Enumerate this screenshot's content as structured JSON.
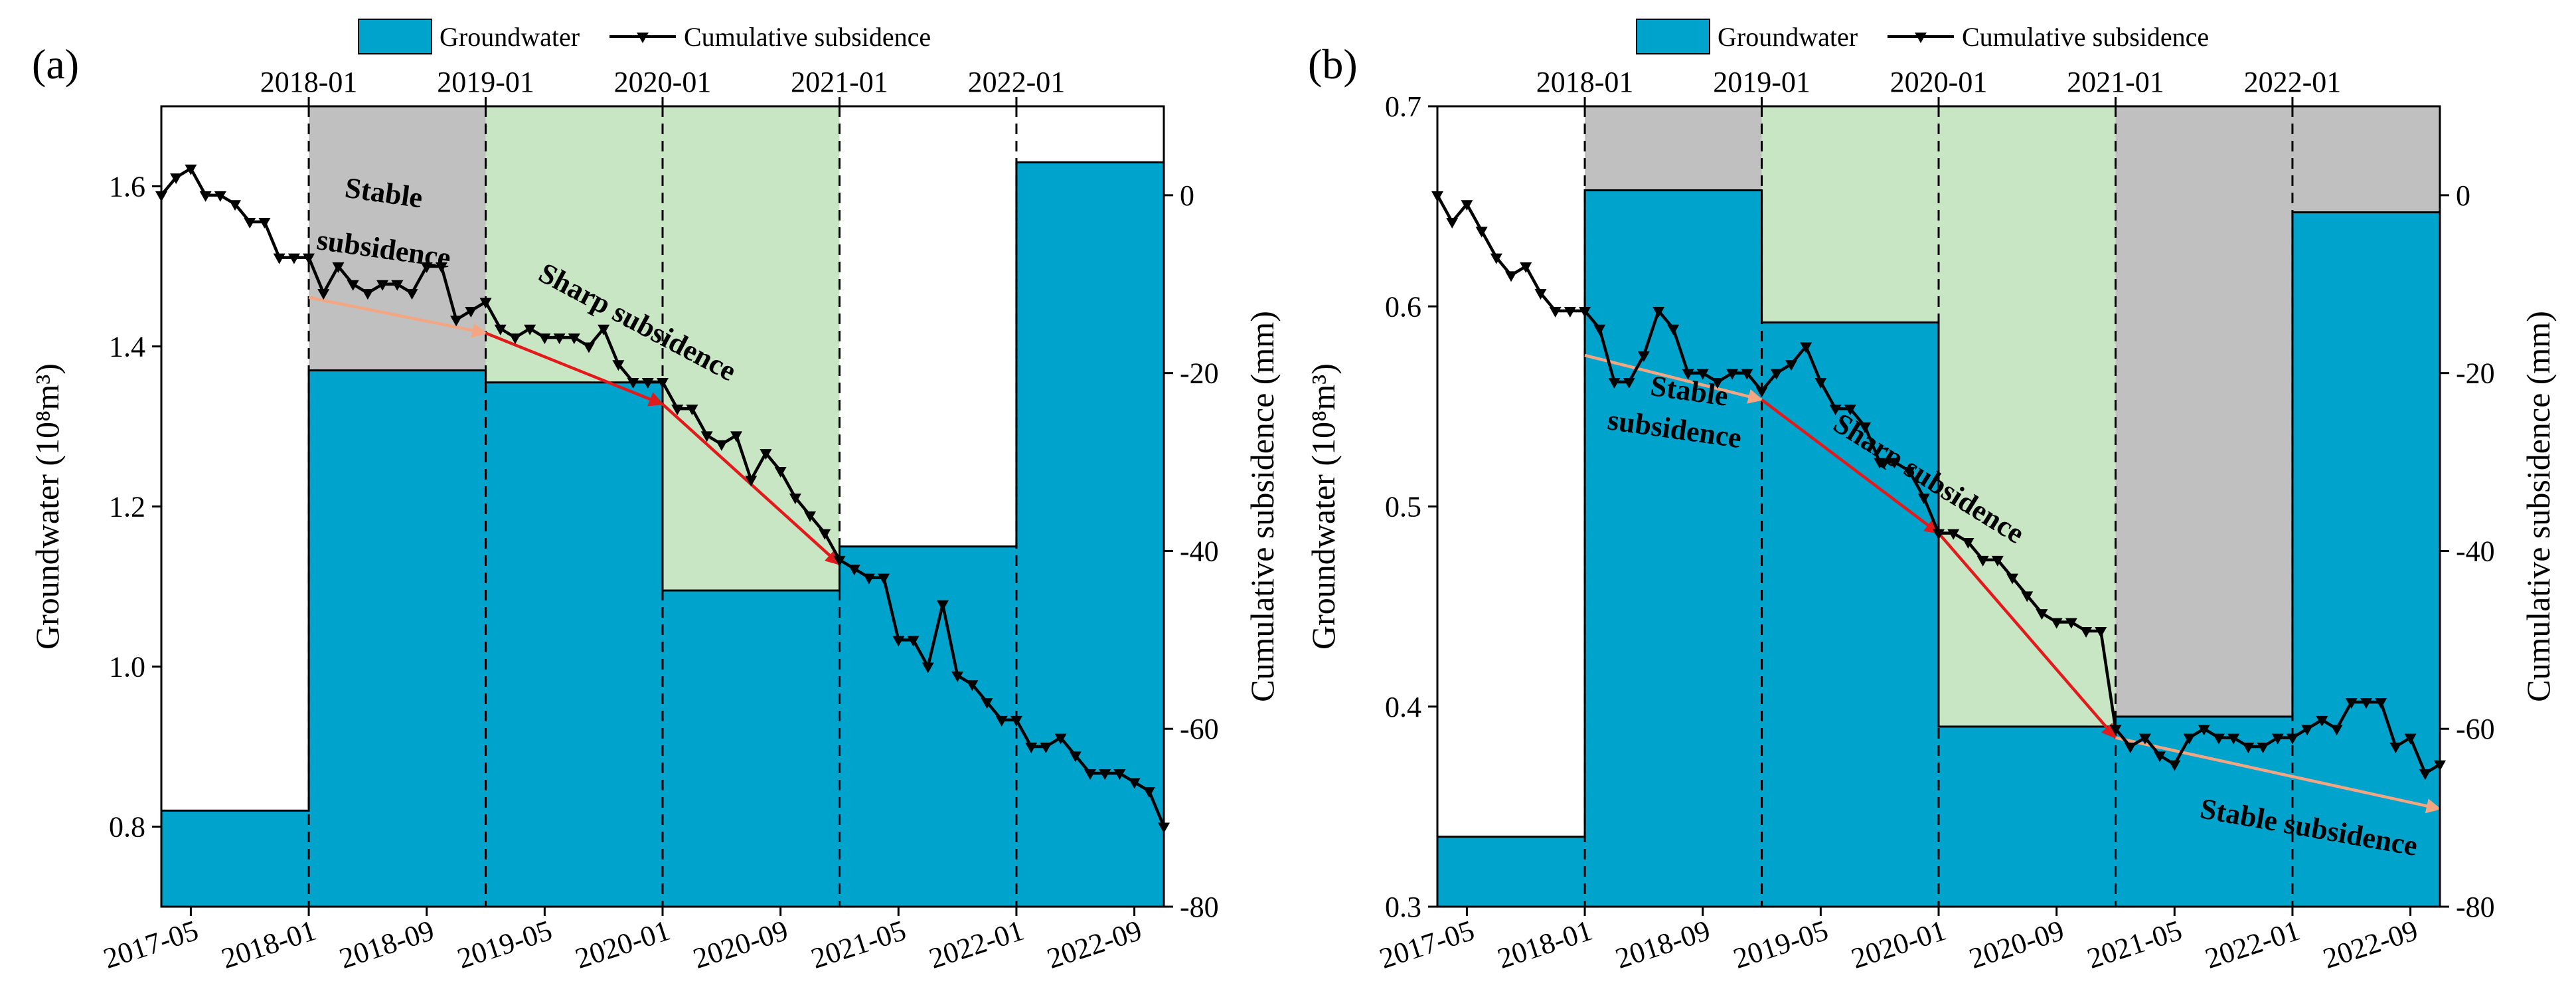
{
  "chart_data": [
    {
      "panel": "(a)",
      "type": "bar+line",
      "legend": [
        {
          "label": "Groundwater",
          "type": "bar",
          "color": "#00a3cc"
        },
        {
          "label": "Cumulative subsidence",
          "type": "line-marker",
          "color": "#000000"
        }
      ],
      "legend_placement": "top-center",
      "xlabel": "",
      "ylabel_left": "Groundwater (10⁸m³)",
      "ylabel_right": "Cumulative subsidence (mm)",
      "x_range": [
        "2017-03",
        "2022-11"
      ],
      "x_bottom_ticks": [
        "2017-05",
        "2018-01",
        "2018-09",
        "2019-05",
        "2020-01",
        "2020-09",
        "2021-05",
        "2022-01",
        "2022-09"
      ],
      "x_top_ticks": [
        "2018-01",
        "2019-01",
        "2020-01",
        "2021-01",
        "2022-01"
      ],
      "ylim_left": [
        0.7,
        1.7
      ],
      "yticks_left": [
        "0.8",
        "1.0",
        "1.2",
        "1.4",
        "1.6"
      ],
      "ylim_right": [
        -80,
        10
      ],
      "yticks_right": [
        "0",
        "-20",
        "-40",
        "-60",
        "-80"
      ],
      "groundwater": [
        {
          "start": "2017-03",
          "end": "2018-01",
          "value": 0.82
        },
        {
          "start": "2018-01",
          "end": "2019-01",
          "value": 1.37
        },
        {
          "start": "2019-01",
          "end": "2020-01",
          "value": 1.355
        },
        {
          "start": "2020-01",
          "end": "2021-01",
          "value": 1.095
        },
        {
          "start": "2021-01",
          "end": "2022-01",
          "value": 1.15
        },
        {
          "start": "2022-01",
          "end": "2022-11",
          "value": 1.63
        }
      ],
      "shaded_periods": [
        {
          "start": "2018-01",
          "end": "2019-01",
          "stage": "Stable subsidence",
          "color": "#c0c0c0"
        },
        {
          "start": "2019-01",
          "end": "2021-01",
          "stage": "Sharp subsidence",
          "color": "#c9e6c4"
        }
      ],
      "subsidence": {
        "x": [
          "2017-03",
          "2017-04",
          "2017-05",
          "2017-06",
          "2017-07",
          "2017-08",
          "2017-09",
          "2017-10",
          "2017-11",
          "2017-12",
          "2018-01",
          "2018-02",
          "2018-03",
          "2018-04",
          "2018-05",
          "2018-06",
          "2018-07",
          "2018-08",
          "2018-09",
          "2018-10",
          "2018-11",
          "2018-12",
          "2019-01",
          "2019-02",
          "2019-03",
          "2019-04",
          "2019-05",
          "2019-06",
          "2019-07",
          "2019-08",
          "2019-09",
          "2019-10",
          "2019-11",
          "2019-12",
          "2020-01",
          "2020-02",
          "2020-03",
          "2020-04",
          "2020-05",
          "2020-06",
          "2020-07",
          "2020-08",
          "2020-09",
          "2020-10",
          "2020-11",
          "2020-12",
          "2021-01",
          "2021-02",
          "2021-03",
          "2021-04",
          "2021-05",
          "2021-06",
          "2021-07",
          "2021-08",
          "2021-09",
          "2021-10",
          "2021-11",
          "2021-12",
          "2022-01",
          "2022-02",
          "2022-03",
          "2022-04",
          "2022-05",
          "2022-06",
          "2022-07",
          "2022-08",
          "2022-09",
          "2022-10",
          "2022-11"
        ],
        "y": [
          0,
          2,
          3,
          0,
          0,
          -1,
          -3,
          -3,
          -7,
          -7,
          -7,
          -11,
          -8,
          -10,
          -11,
          -10,
          -10,
          -11,
          -8,
          -8,
          -14,
          -13,
          -12,
          -15,
          -16,
          -15,
          -16,
          -16,
          -16,
          -17,
          -15,
          -19,
          -21,
          -21,
          -21,
          -24,
          -24,
          -27,
          -28,
          -27,
          -32,
          -29,
          -31,
          -34,
          -36,
          -38,
          -41,
          -42,
          -43,
          -43,
          -50,
          -50,
          -53,
          -46,
          -54,
          -55,
          -57,
          -59,
          -59,
          -62,
          -62,
          -61,
          -63,
          -65,
          -65,
          -65,
          -66,
          -67,
          -71
        ]
      },
      "arrows": [
        {
          "from": [
            "2018-01",
            -11.5
          ],
          "to": [
            "2019-01",
            -15.5
          ],
          "stage": "Stable subsidence",
          "color": "#f4a582"
        },
        {
          "from": [
            "2019-01",
            -15.5
          ],
          "to": [
            "2020-01",
            -23.5
          ],
          "stage": "Sharp subsidence",
          "color": "#e31a1c"
        },
        {
          "from": [
            "2020-01",
            -23.5
          ],
          "to": [
            "2021-01",
            -41.5
          ],
          "stage": "Sharp subsidence",
          "color": "#e31a1c"
        }
      ],
      "annotations": [
        {
          "text": "Stable",
          "x": "2018-06",
          "y": 1.58,
          "rotate": 8
        },
        {
          "text": "subsidence",
          "x": "2018-06",
          "y": 1.51,
          "rotate": 8
        },
        {
          "text": "Sharp subsidence",
          "x": "2019-11",
          "y": 1.42,
          "rotate": 28
        }
      ]
    },
    {
      "panel": "(b)",
      "type": "bar+line",
      "legend": [
        {
          "label": "Groundwater",
          "type": "bar",
          "color": "#00a3cc"
        },
        {
          "label": "Cumulative subsidence",
          "type": "line-marker",
          "color": "#000000"
        }
      ],
      "legend_placement": "top-center",
      "xlabel": "",
      "ylabel_left": "Groundwater (10⁸m³)",
      "ylabel_right": "Cumulative subsidence (mm)",
      "x_range": [
        "2017-03",
        "2022-11"
      ],
      "x_bottom_ticks": [
        "2017-05",
        "2018-01",
        "2018-09",
        "2019-05",
        "2020-01",
        "2020-09",
        "2021-05",
        "2022-01",
        "2022-09"
      ],
      "x_top_ticks": [
        "2018-01",
        "2019-01",
        "2020-01",
        "2021-01",
        "2022-01"
      ],
      "ylim_left": [
        0.3,
        0.7
      ],
      "yticks_left": [
        "0.3",
        "0.4",
        "0.5",
        "0.6",
        "0.7"
      ],
      "ylim_right": [
        -80,
        10
      ],
      "yticks_right": [
        "0",
        "-20",
        "-40",
        "-60",
        "-80"
      ],
      "groundwater": [
        {
          "start": "2017-03",
          "end": "2018-01",
          "value": 0.335
        },
        {
          "start": "2018-01",
          "end": "2019-01",
          "value": 0.658
        },
        {
          "start": "2019-01",
          "end": "2020-01",
          "value": 0.592
        },
        {
          "start": "2020-01",
          "end": "2021-01",
          "value": 0.39
        },
        {
          "start": "2021-01",
          "end": "2022-01",
          "value": 0.395
        },
        {
          "start": "2022-01",
          "end": "2022-11",
          "value": 0.647
        }
      ],
      "shaded_periods": [
        {
          "start": "2018-01",
          "end": "2019-01",
          "stage": "Stable subsidence",
          "color": "#c0c0c0"
        },
        {
          "start": "2019-01",
          "end": "2021-01",
          "stage": "Sharp subsidence",
          "color": "#c9e6c4"
        },
        {
          "start": "2021-01",
          "end": "2022-11",
          "stage": "Stable subsidence",
          "color": "#c0c0c0"
        }
      ],
      "subsidence": {
        "x": [
          "2017-03",
          "2017-04",
          "2017-05",
          "2017-06",
          "2017-07",
          "2017-08",
          "2017-09",
          "2017-10",
          "2017-11",
          "2017-12",
          "2018-01",
          "2018-02",
          "2018-03",
          "2018-04",
          "2018-05",
          "2018-06",
          "2018-07",
          "2018-08",
          "2018-09",
          "2018-10",
          "2018-11",
          "2018-12",
          "2019-01",
          "2019-02",
          "2019-03",
          "2019-04",
          "2019-05",
          "2019-06",
          "2019-07",
          "2019-08",
          "2019-09",
          "2019-10",
          "2019-11",
          "2019-12",
          "2020-01",
          "2020-02",
          "2020-03",
          "2020-04",
          "2020-05",
          "2020-06",
          "2020-07",
          "2020-08",
          "2020-09",
          "2020-10",
          "2020-11",
          "2020-12",
          "2021-01",
          "2021-02",
          "2021-03",
          "2021-04",
          "2021-05",
          "2021-06",
          "2021-07",
          "2021-08",
          "2021-09",
          "2021-10",
          "2021-11",
          "2021-12",
          "2022-01",
          "2022-02",
          "2022-03",
          "2022-04",
          "2022-05",
          "2022-06",
          "2022-07",
          "2022-08",
          "2022-09",
          "2022-10",
          "2022-11"
        ],
        "y": [
          0,
          -3,
          -1,
          -4,
          -7,
          -9,
          -8,
          -11,
          -13,
          -13,
          -13,
          -15,
          -21,
          -21,
          -18,
          -13,
          -15,
          -20,
          -20,
          -21,
          -20,
          -20,
          -22,
          -20,
          -19,
          -17,
          -21,
          -24,
          -24,
          -26,
          -30,
          -30,
          -31,
          -34,
          -38,
          -38,
          -39,
          -41,
          -41,
          -43,
          -45,
          -47,
          -48,
          -48,
          -49,
          -49,
          -60,
          -62,
          -61,
          -63,
          -64,
          -61,
          -60,
          -61,
          -61,
          -62,
          -62,
          -61,
          -61,
          -60,
          -59,
          -60,
          -57,
          -57,
          -57,
          -62,
          -61,
          -65,
          -64
        ]
      },
      "arrows": [
        {
          "from": [
            "2018-01",
            -18
          ],
          "to": [
            "2019-01",
            -23
          ],
          "stage": "Stable subsidence",
          "color": "#f4a582"
        },
        {
          "from": [
            "2019-01",
            -23
          ],
          "to": [
            "2020-01",
            -38
          ],
          "stage": "Sharp subsidence",
          "color": "#e31a1c"
        },
        {
          "from": [
            "2020-01",
            -38
          ],
          "to": [
            "2021-01",
            -61
          ],
          "stage": "Sharp subsidence",
          "color": "#e31a1c"
        },
        {
          "from": [
            "2021-01",
            -61
          ],
          "to": [
            "2022-11",
            -69
          ],
          "stage": "Stable subsidence",
          "color": "#f4a582"
        }
      ],
      "annotations": [
        {
          "text": "Stable",
          "x": "2018-08",
          "y": 0.553,
          "rotate": 8
        },
        {
          "text": "subsidence",
          "x": "2018-07",
          "y": 0.534,
          "rotate": 8
        },
        {
          "text": "Sharp subsidence",
          "x": "2019-12",
          "y": 0.51,
          "rotate": 32
        },
        {
          "text": "Stable subsidence",
          "x": "2022-02",
          "y": 0.335,
          "rotate": 10
        }
      ]
    }
  ]
}
